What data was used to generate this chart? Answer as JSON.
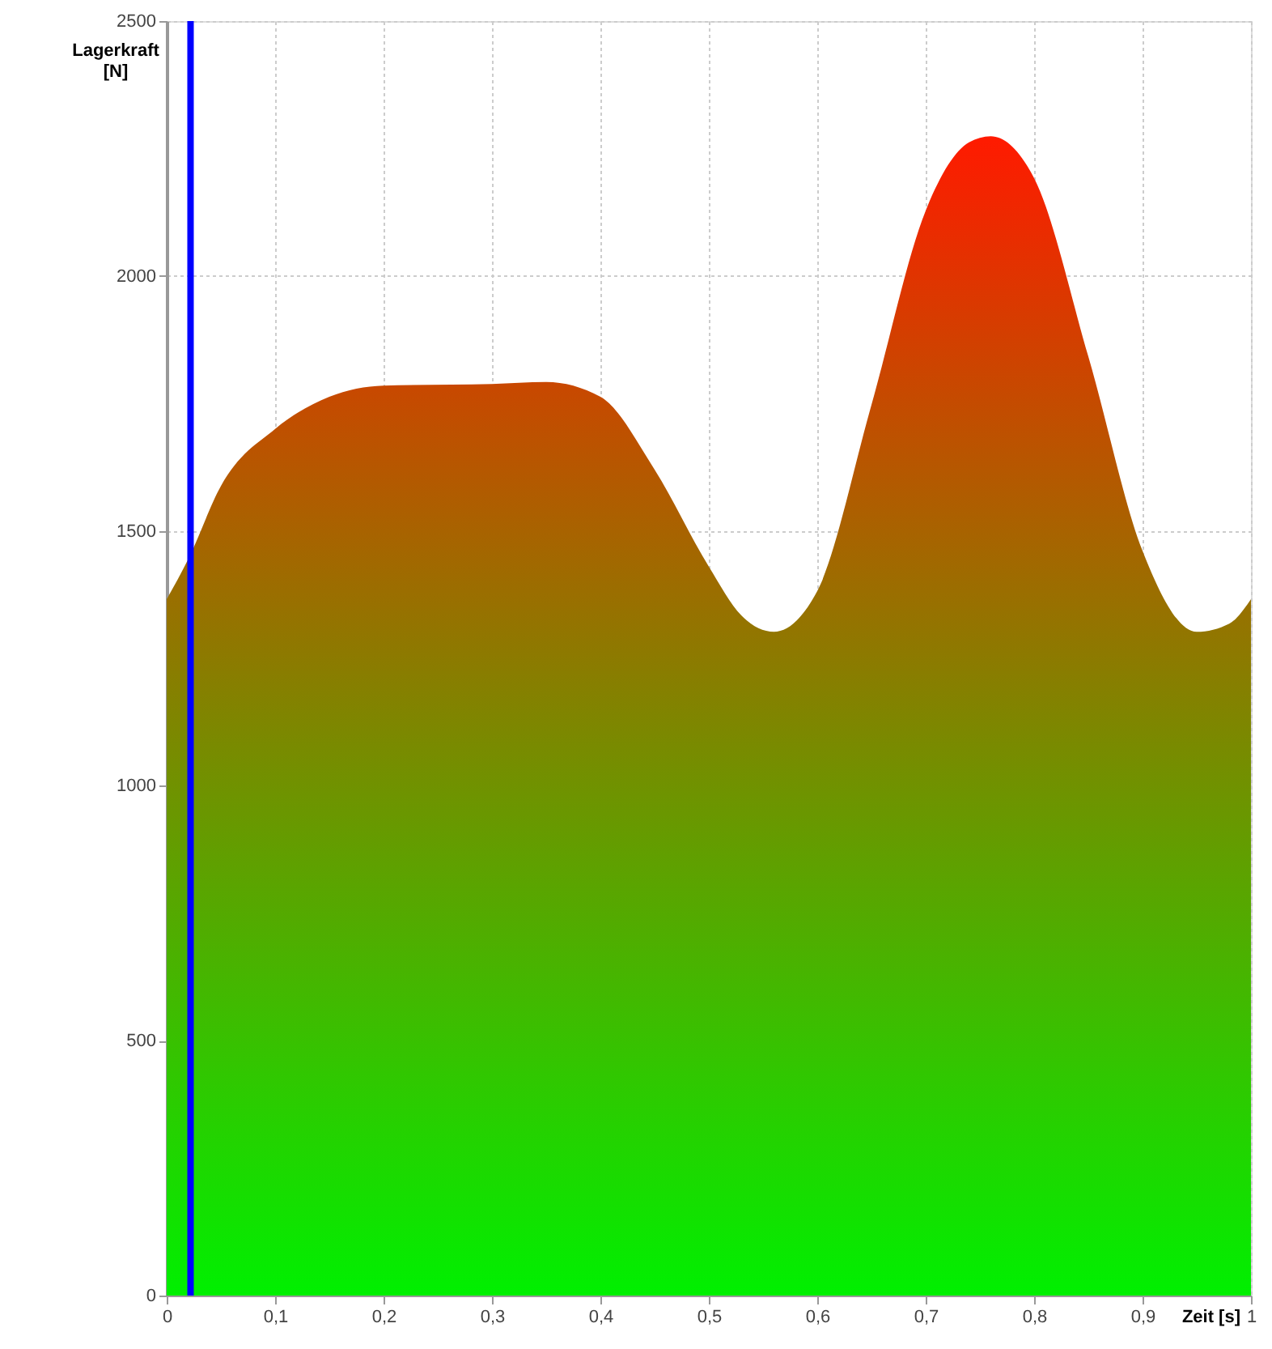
{
  "chart_data": {
    "type": "area",
    "xlabel": "Zeit [s]",
    "ylabel": "Lagerkraft [N]",
    "x": [
      0,
      0.02,
      0.05,
      0.1,
      0.15,
      0.2,
      0.3,
      0.35,
      0.4,
      0.45,
      0.5,
      0.53,
      0.56,
      0.6,
      0.65,
      0.7,
      0.74,
      0.76,
      0.8,
      0.85,
      0.9,
      0.95,
      0.98,
      1
    ],
    "series": [
      {
        "values": [
          1366,
          1445,
          1588,
          1700,
          1763,
          1785,
          1788,
          1792,
          1763,
          1620,
          1430,
          1334,
          1302,
          1382,
          1747,
          2128,
          2262,
          2274,
          2192,
          1842,
          1461,
          1302,
          1318,
          1366
        ],
        "color": "#ff1a00"
      }
    ],
    "xlim": [
      0,
      1
    ],
    "ylim": [
      0,
      2500
    ],
    "xticks": [
      0,
      {
        "value": 0.1,
        "label": "0,1"
      },
      {
        "value": 0.2,
        "label": "0,2"
      },
      {
        "value": 0.3,
        "label": "0,3"
      },
      {
        "value": 0.4,
        "label": "0,4"
      },
      {
        "value": 0.5,
        "label": "0,5"
      },
      {
        "value": 0.6,
        "label": "0,6"
      },
      {
        "value": 0.7,
        "label": "0,7"
      },
      {
        "value": 0.8,
        "label": "0,8"
      },
      {
        "value": 0.9,
        "label": "0,9"
      },
      1
    ],
    "yticks": [
      0,
      500,
      1000,
      1500,
      2000,
      2500
    ],
    "ref_lines": [
      {
        "axis": "x",
        "value": 0.022,
        "color": "#0000ff"
      }
    ],
    "grid": true
  }
}
